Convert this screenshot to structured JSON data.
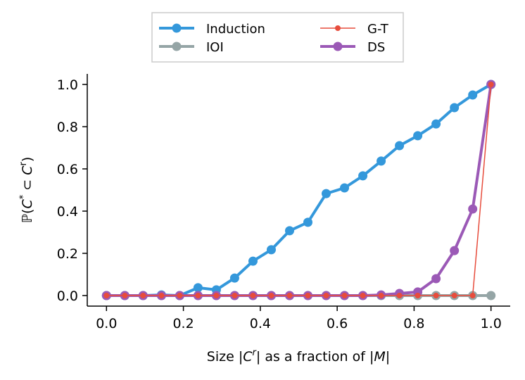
{
  "chart_data": {
    "type": "line",
    "xlabel": "Size |C^r| as a fraction of |M|",
    "ylabel": "ℙ(C* ⊂ C^r)",
    "xlim": [
      -0.05,
      1.05
    ],
    "ylim": [
      -0.05,
      1.05
    ],
    "xticks": [
      "0.0",
      "0.2",
      "0.4",
      "0.6",
      "0.8",
      "1.0"
    ],
    "yticks": [
      "0.0",
      "0.2",
      "0.4",
      "0.6",
      "0.8",
      "1.0"
    ],
    "grid": false,
    "legend_position": "top-center",
    "x": [
      0.0,
      0.0476,
      0.0952,
      0.1429,
      0.1905,
      0.2381,
      0.2857,
      0.3333,
      0.381,
      0.4286,
      0.4762,
      0.5238,
      0.5714,
      0.619,
      0.6667,
      0.7143,
      0.7619,
      0.8095,
      0.8571,
      0.9048,
      0.9524,
      1.0
    ],
    "series": [
      {
        "name": "Induction",
        "color": "#3498db",
        "marker": "circle",
        "values": [
          0.0,
          0.0,
          0.0,
          0.003,
          0.0,
          0.037,
          0.027,
          0.083,
          0.163,
          0.217,
          0.307,
          0.347,
          0.483,
          0.51,
          0.567,
          0.637,
          0.71,
          0.757,
          0.813,
          0.89,
          0.95,
          1.0
        ]
      },
      {
        "name": "IOI",
        "color": "#95a5a6",
        "marker": "circle",
        "values": [
          0.0,
          0.0,
          0.0,
          0.0,
          0.0,
          0.0,
          0.0,
          0.0,
          0.0,
          0.0,
          0.0,
          0.0,
          0.0,
          0.0,
          0.0,
          0.0,
          0.0,
          0.0,
          0.0,
          0.0,
          0.0,
          0.0
        ]
      },
      {
        "name": "G-T",
        "color": "#e74c3c",
        "marker": "small-circle",
        "values": [
          0.0,
          0.0,
          0.0,
          0.0,
          0.0,
          0.0,
          0.0,
          0.0,
          0.0,
          0.0,
          0.0,
          0.0,
          0.0,
          0.0,
          0.0,
          0.0,
          0.0,
          0.0,
          0.0,
          0.0,
          0.0,
          1.0
        ]
      },
      {
        "name": "DS",
        "color": "#9b59b6",
        "marker": "circle",
        "values": [
          0.0,
          0.0,
          0.0,
          0.0,
          0.0,
          0.0,
          0.0,
          0.0,
          0.0,
          0.0,
          0.0,
          0.0,
          0.0,
          0.0,
          0.0,
          0.003,
          0.01,
          0.017,
          0.08,
          0.213,
          0.41,
          1.0
        ]
      }
    ]
  }
}
